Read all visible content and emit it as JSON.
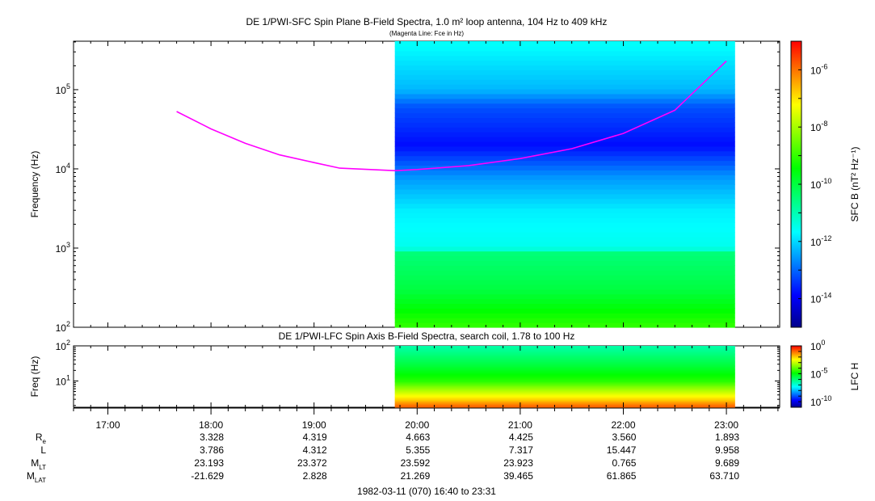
{
  "top_panel": {
    "title": "DE 1/PWI-SFC  Spin Plane B-Field Spectra, 1.0 m² loop antenna, 104 Hz to 409 kHz",
    "subtitle": "(Magenta Line: Fce in Hz)",
    "ylabel": "Frequency (Hz)",
    "yticks": [
      {
        "base": "10",
        "exp": "2"
      },
      {
        "base": "10",
        "exp": "3"
      },
      {
        "base": "10",
        "exp": "4"
      },
      {
        "base": "10",
        "exp": "5"
      }
    ],
    "colorbar_label": "SFC B (nT² Hz⁻¹)",
    "colorbar_ticks": [
      {
        "base": "10",
        "exp": "-6"
      },
      {
        "base": "10",
        "exp": "-8"
      },
      {
        "base": "10",
        "exp": "-10"
      },
      {
        "base": "10",
        "exp": "-12"
      },
      {
        "base": "10",
        "exp": "-14"
      }
    ]
  },
  "bottom_panel": {
    "title": "DE 1/PWI-LFC  Spin Axis B-Field Spectra, search coil, 1.78 to 100 Hz",
    "ylabel": "Freq (Hz)",
    "yticks": [
      {
        "base": "10",
        "exp": "1"
      },
      {
        "base": "10",
        "exp": "2"
      }
    ],
    "colorbar_label": "LFC H",
    "colorbar_ticks": [
      {
        "base": "10",
        "exp": "0"
      },
      {
        "base": "10",
        "exp": "-5"
      },
      {
        "base": "10",
        "exp": "-10"
      }
    ]
  },
  "time_labels": [
    "17:00",
    "18:00",
    "19:00",
    "20:00",
    "21:00",
    "22:00",
    "23:00"
  ],
  "ephemeris": {
    "rows": [
      {
        "label": "R",
        "sub": "e",
        "values": [
          "3.328",
          "4.319",
          "4.663",
          "4.425",
          "3.560",
          "1.893"
        ]
      },
      {
        "label": "L",
        "sub": "",
        "values": [
          "3.786",
          "4.312",
          "5.355",
          "7.317",
          "15.447",
          "9.958"
        ]
      },
      {
        "label": "M",
        "sub": "LT",
        "values": [
          "23.193",
          "23.372",
          "23.592",
          "23.923",
          "0.765",
          "9.689"
        ]
      },
      {
        "label": "M",
        "sub": "LAT",
        "values": [
          "-21.629",
          "2.828",
          "21.269",
          "39.465",
          "61.865",
          "63.710"
        ]
      }
    ]
  },
  "footer": "1982-03-11 (070) 16:40 to 23:31",
  "colors": {
    "fce_line": "#ff00ff",
    "colormap": [
      "#00008b",
      "#0000ff",
      "#0080ff",
      "#00ffff",
      "#00ff80",
      "#00ff00",
      "#80ff00",
      "#ffff00",
      "#ff8000",
      "#ff0000"
    ]
  },
  "chart_data": [
    {
      "type": "heatmap",
      "title": "DE 1/PWI-SFC  Spin Plane B-Field Spectra, 1.0 m² loop antenna, 104 Hz to 409 kHz",
      "ylabel": "Frequency (Hz)",
      "y_scale": "log",
      "ylim": [
        100,
        409000
      ],
      "xlim": [
        "16:40",
        "23:31"
      ],
      "data_time_range": [
        "19:47",
        "23:05"
      ],
      "colorbar": {
        "label": "SFC B (nT² Hz⁻¹)",
        "scale": "log",
        "range": [
          1e-15,
          1e-05
        ]
      },
      "band_profile": [
        {
          "freq_hz": 100,
          "log_power": -9
        },
        {
          "freq_hz": 300,
          "log_power": -10
        },
        {
          "freq_hz": 900,
          "log_power": -10.5
        },
        {
          "freq_hz": 1000,
          "log_power": -11.5
        },
        {
          "freq_hz": 3000,
          "log_power": -11.8
        },
        {
          "freq_hz": 8000,
          "log_power": -12.6
        },
        {
          "freq_hz": 20000,
          "log_power": -13.8
        },
        {
          "freq_hz": 60000,
          "log_power": -13.2
        },
        {
          "freq_hz": 100000,
          "log_power": -12.3
        },
        {
          "freq_hz": 409000,
          "log_power": -11.6
        }
      ],
      "series": [
        {
          "name": "Fce",
          "x": [
            "17:40",
            "18:00",
            "18:20",
            "18:40",
            "19:00",
            "19:15",
            "19:47",
            "20:00",
            "20:30",
            "21:00",
            "21:30",
            "22:00",
            "22:30",
            "23:00"
          ],
          "y": [
            53000,
            32000,
            21000,
            15000,
            12000,
            10200,
            9500,
            9800,
            11000,
            13500,
            18000,
            28000,
            55000,
            230000
          ]
        }
      ]
    },
    {
      "type": "heatmap",
      "title": "DE 1/PWI-LFC  Spin Axis B-Field Spectra, search coil, 1.78 to 100 Hz",
      "ylabel": "Freq (Hz)",
      "y_scale": "log",
      "ylim": [
        1.78,
        100
      ],
      "xlim": [
        "16:40",
        "23:31"
      ],
      "data_time_range": [
        "19:47",
        "23:05"
      ],
      "colorbar": {
        "label": "LFC H",
        "scale": "log",
        "range": [
          1e-11,
          1
        ]
      },
      "band_profile": [
        {
          "freq_hz": 2,
          "log_power": -1
        },
        {
          "freq_hz": 3,
          "log_power": -2
        },
        {
          "freq_hz": 5,
          "log_power": -3
        },
        {
          "freq_hz": 10,
          "log_power": -4.5
        },
        {
          "freq_hz": 30,
          "log_power": -5.5
        },
        {
          "freq_hz": 100,
          "log_power": -6.5
        }
      ]
    }
  ]
}
